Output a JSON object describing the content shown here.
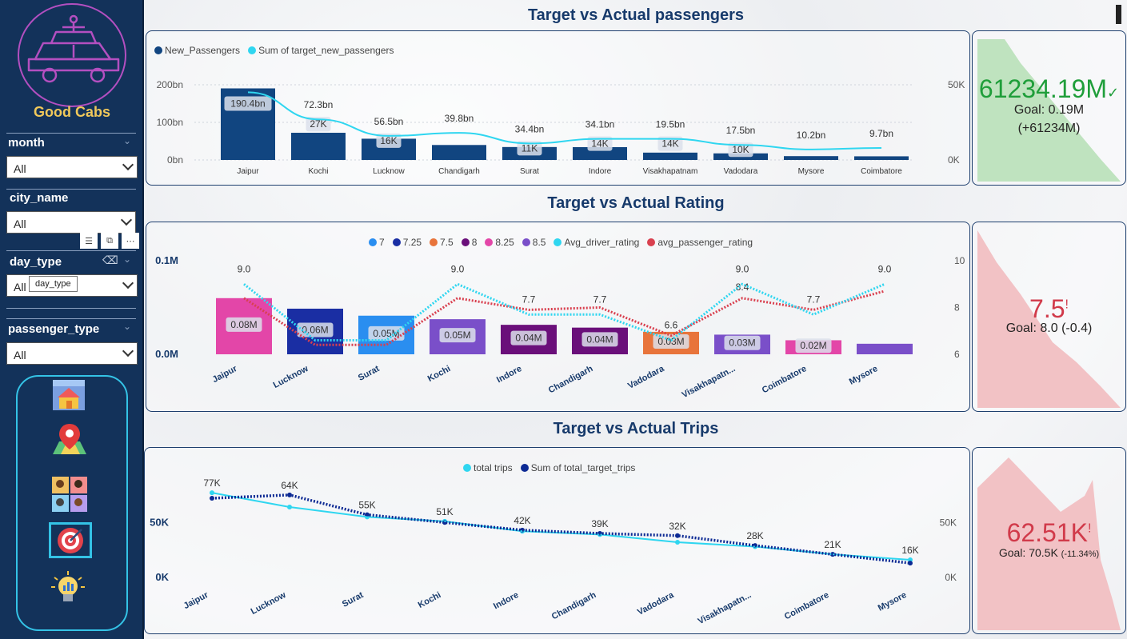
{
  "brand": "Good Cabs",
  "slicers": [
    {
      "title": "month",
      "value": "All"
    },
    {
      "title": "city_name",
      "value": "All"
    },
    {
      "title": "day_type",
      "value": "All",
      "tooltip": "day_type"
    },
    {
      "title": "passenger_type",
      "value": "All"
    }
  ],
  "nav": [
    {
      "icon": "home-icon"
    },
    {
      "icon": "map-pin-icon"
    },
    {
      "icon": "passengers-icon"
    },
    {
      "icon": "target-icon",
      "selected": true
    },
    {
      "icon": "insights-bulb-icon"
    }
  ],
  "sections": {
    "passengers": {
      "title": "Target vs Actual passengers"
    },
    "rating": {
      "title": "Target vs Actual Rating"
    },
    "trips": {
      "title": "Target vs Actual Trips"
    }
  },
  "kpis": {
    "passengers": {
      "value": "61234.19M",
      "status": "✓",
      "goal": "Goal: 0.19M",
      "delta": "(+61234M)",
      "color": "#1f9e3a",
      "bg": "#bfe3bf"
    },
    "rating": {
      "value": "7.5",
      "status": "!",
      "goal": "Goal: 8.0 (-0.4)",
      "color": "#d13a4a",
      "bg": "#f2c2c5"
    },
    "trips": {
      "value": "62.51K",
      "status": "!",
      "goal_prefix": "Goal: 70.5K",
      "goal_delta": "(-11.34%)",
      "color": "#d13a4a",
      "bg": "#f2c2c5"
    }
  },
  "chart_data": [
    {
      "type": "bar",
      "id": "passengers",
      "legend": [
        {
          "name": "New_Passengers",
          "color": "#114580"
        },
        {
          "name": "Sum of target_new_passengers",
          "color": "#2fd6f0"
        }
      ],
      "categories": [
        "Jaipur",
        "Kochi",
        "Lucknow",
        "Chandigarh",
        "Surat",
        "Indore",
        "Visakhapatnam",
        "Vadodara",
        "Mysore",
        "Coimbatore"
      ],
      "series": [
        {
          "name": "New_Passengers",
          "values": [
            190.4,
            72.3,
            56.5,
            39.8,
            34.4,
            34.1,
            19.5,
            17.5,
            10.2,
            9.7
          ],
          "labels": [
            "190.4bn",
            "72.3bn",
            "56.5bn",
            "39.8bn",
            "34.4bn",
            "34.1bn",
            "19.5bn",
            "17.5bn",
            "10.2bn",
            "9.7bn"
          ]
        },
        {
          "name": "Sum of target_new_passengers",
          "values": [
            45,
            27,
            16,
            18,
            11,
            14,
            14,
            10,
            7,
            8
          ],
          "labels": [
            "",
            "27K",
            "16K",
            "",
            "11K",
            "14K",
            "14K",
            "10K",
            "",
            ""
          ]
        }
      ],
      "yleft": {
        "ticks": [
          "0bn",
          "100bn",
          "200bn"
        ],
        "max": 200
      },
      "yright": {
        "ticks": [
          "0K",
          "50K"
        ],
        "max": 50
      }
    },
    {
      "type": "bar",
      "id": "rating",
      "legend": [
        {
          "name": "7",
          "color": "#2a8ef0"
        },
        {
          "name": "7.25",
          "color": "#1a2ea3"
        },
        {
          "name": "7.5",
          "color": "#e8743b"
        },
        {
          "name": "8",
          "color": "#6a0f7a"
        },
        {
          "name": "8.25",
          "color": "#e346a8"
        },
        {
          "name": "8.5",
          "color": "#7a4fc9"
        },
        {
          "name": "Avg_driver_rating",
          "color": "#2fd6f0"
        },
        {
          "name": "avg_passenger_rating",
          "color": "#d9404f"
        }
      ],
      "categories": [
        "Jaipur",
        "Lucknow",
        "Surat",
        "Kochi",
        "Indore",
        "Chandigarh",
        "Vadodara",
        "Visakhapatn...",
        "Coimbatore",
        "Mysore"
      ],
      "bar_colors": [
        "#e346a8",
        "#1a2ea3",
        "#2a8ef0",
        "#7a4fc9",
        "#6a0f7a",
        "#6a0f7a",
        "#e8743b",
        "#7a4fc9",
        "#e346a8",
        "#7a4fc9"
      ],
      "bar_values": [
        0.08,
        0.065,
        0.055,
        0.05,
        0.042,
        0.038,
        0.032,
        0.028,
        0.02,
        0.015
      ],
      "bar_labels": [
        "0.08M",
        "0.06M",
        "0.05M",
        "0.05M",
        "0.04M",
        "0.04M",
        "0.03M",
        "0.03M",
        "0.02M",
        ""
      ],
      "driver_rating": [
        9.0,
        6.6,
        6.6,
        9.0,
        7.7,
        7.7,
        6.6,
        9.0,
        7.7,
        9.0
      ],
      "passenger_rating": [
        8.4,
        6.4,
        6.4,
        8.4,
        7.9,
        8.0,
        6.8,
        8.4,
        7.9,
        8.7
      ],
      "driver_labels": [
        "9.0",
        "",
        "",
        "9.0",
        "7.7",
        "7.7",
        "6.6",
        "9.0",
        "7.7",
        "9.0"
      ],
      "passenger_labels": [
        "",
        "",
        "",
        "",
        "",
        "",
        "",
        "8.4",
        "",
        ""
      ],
      "yleft": {
        "ticks": [
          "0.0M",
          "0.1M"
        ],
        "max": 0.1
      },
      "yright": {
        "ticks": [
          "6",
          "8",
          "10"
        ],
        "min": 6,
        "max": 10
      }
    },
    {
      "type": "line",
      "id": "trips",
      "legend": [
        {
          "name": "total trips",
          "color": "#2fd6f0"
        },
        {
          "name": "Sum of total_target_trips",
          "color": "#0d2a94"
        }
      ],
      "categories": [
        "Jaipur",
        "Lucknow",
        "Surat",
        "Kochi",
        "Indore",
        "Chandigarh",
        "Vadodara",
        "Visakhapatn...",
        "Coimbatore",
        "Mysore"
      ],
      "series": [
        {
          "name": "total trips",
          "values": [
            77,
            64,
            55,
            51,
            42,
            39,
            32,
            28,
            21,
            16
          ],
          "labels": [
            "77K",
            "64K",
            "55K",
            "51K",
            "42K",
            "39K",
            "32K",
            "28K",
            "21K",
            "16K"
          ]
        },
        {
          "name": "Sum of total_target_trips",
          "values": [
            72,
            75,
            57,
            50,
            43,
            40,
            38,
            29,
            21,
            13
          ]
        }
      ],
      "yleft": {
        "ticks": [
          "0K",
          "50K"
        ],
        "max": 80
      },
      "yright": {
        "ticks": [
          "0K",
          "50K"
        ],
        "max": 80
      }
    }
  ]
}
